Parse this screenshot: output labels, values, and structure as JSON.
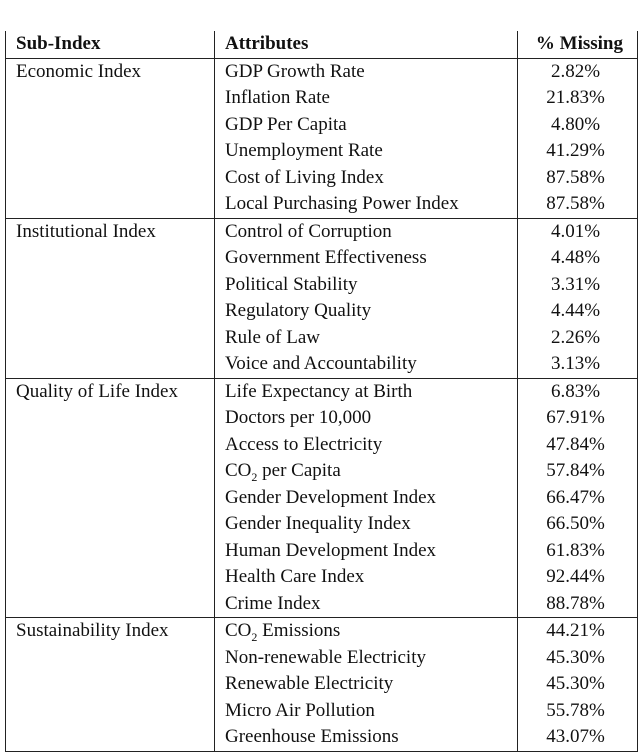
{
  "table": {
    "headers": [
      "Sub-Index",
      "Attributes",
      "% Missing"
    ],
    "groups": [
      {
        "sub_index": "Economic Index",
        "rows": [
          [
            "GDP Growth Rate",
            "2.82%"
          ],
          [
            "Inflation Rate",
            "21.83%"
          ],
          [
            "GDP Per Capita",
            "4.80%"
          ],
          [
            "Unemployment Rate",
            "41.29%"
          ],
          [
            "Cost of Living Index",
            "87.58%"
          ],
          [
            "Local Purchasing Power Index",
            "87.58%"
          ]
        ]
      },
      {
        "sub_index": "Institutional Index",
        "rows": [
          [
            "Control of Corruption",
            "4.01%"
          ],
          [
            "Government Effectiveness",
            "4.48%"
          ],
          [
            "Political Stability",
            "3.31%"
          ],
          [
            "Regulatory Quality",
            "4.44%"
          ],
          [
            "Rule of Law",
            "2.26%"
          ],
          [
            "Voice and Accountability",
            "3.13%"
          ]
        ]
      },
      {
        "sub_index": "Quality of Life Index",
        "rows": [
          [
            "Life Expectancy at Birth",
            "6.83%"
          ],
          [
            "Doctors per 10,000",
            "67.91%"
          ],
          [
            "Access to Electricity",
            "47.84%"
          ],
          [
            "CO2 per Capita",
            "57.84%"
          ],
          [
            "Gender Development Index",
            "66.47%"
          ],
          [
            "Gender Inequality Index",
            "66.50%"
          ],
          [
            "Human Development Index",
            "61.83%"
          ],
          [
            "Health Care Index",
            "92.44%"
          ],
          [
            "Crime Index",
            "88.78%"
          ]
        ]
      },
      {
        "sub_index": "Sustainability Index",
        "rows": [
          [
            "CO2 Emissions",
            "44.21%"
          ],
          [
            "Non-renewable Electricity",
            "45.30%"
          ],
          [
            "Renewable Electricity",
            "45.30%"
          ],
          [
            "Micro Air Pollution",
            "55.78%"
          ],
          [
            "Greenhouse Emissions",
            "43.07%"
          ]
        ]
      }
    ]
  }
}
